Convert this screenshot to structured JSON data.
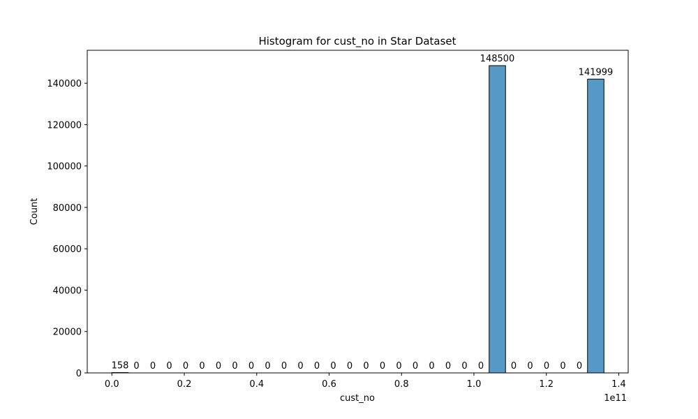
{
  "chart_data": {
    "type": "bar",
    "title": "Histogram for cust_no in Star Dataset",
    "xlabel": "cust_no",
    "ylabel": "Count",
    "x_offset_text": "1e11",
    "xlim": [
      -0.068,
      1.426
    ],
    "ylim": [
      0,
      155925
    ],
    "xticks": [
      0.0,
      0.2,
      0.4,
      0.6,
      0.8,
      1.0,
      1.2,
      1.4
    ],
    "xtick_labels": [
      "0.0",
      "0.2",
      "0.4",
      "0.6",
      "0.8",
      "1.0",
      "1.2",
      "1.4"
    ],
    "yticks": [
      0,
      20000,
      40000,
      60000,
      80000,
      100000,
      120000,
      140000
    ],
    "ytick_labels": [
      "0",
      "20000",
      "40000",
      "60000",
      "80000",
      "100000",
      "120000",
      "140000"
    ],
    "bin_start": 0.0,
    "bin_width": 0.0453,
    "values": [
      158,
      0,
      0,
      0,
      0,
      0,
      0,
      0,
      0,
      0,
      0,
      0,
      0,
      0,
      0,
      0,
      0,
      0,
      0,
      0,
      0,
      0,
      0,
      148500,
      0,
      0,
      0,
      0,
      0,
      141999
    ],
    "bar_color": "#5799c6",
    "grid": false,
    "legend": "none"
  }
}
